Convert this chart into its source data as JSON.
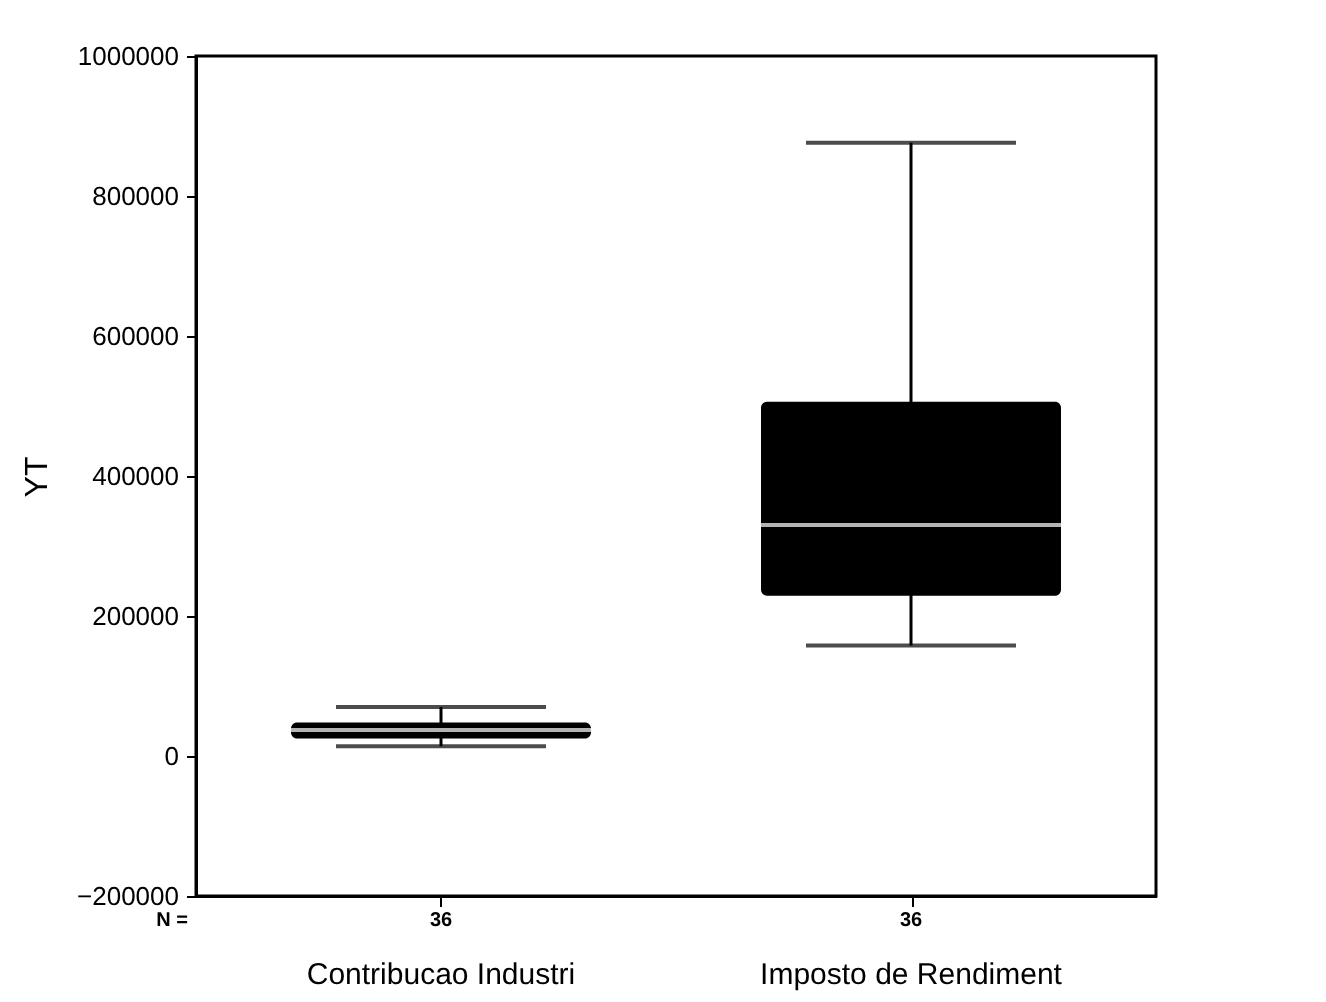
{
  "chart_data": {
    "type": "box",
    "ylabel": "YT",
    "categories": [
      "Contribucao Industri",
      "Imposto de Rendiment"
    ],
    "boxes": [
      {
        "low": 14000,
        "q1": 25000,
        "median": 37000,
        "q3": 48000,
        "high": 70000
      },
      {
        "low": 158000,
        "q1": 229000,
        "median": 330000,
        "q3": 506000,
        "high": 876000
      }
    ],
    "color": "#000000",
    "ylim": [
      -200000,
      1000000
    ],
    "yticks": [
      -200000,
      0,
      200000,
      400000,
      600000,
      800000,
      1000000
    ],
    "grid": false,
    "annotations": [
      "N =",
      "36",
      "36"
    ]
  }
}
